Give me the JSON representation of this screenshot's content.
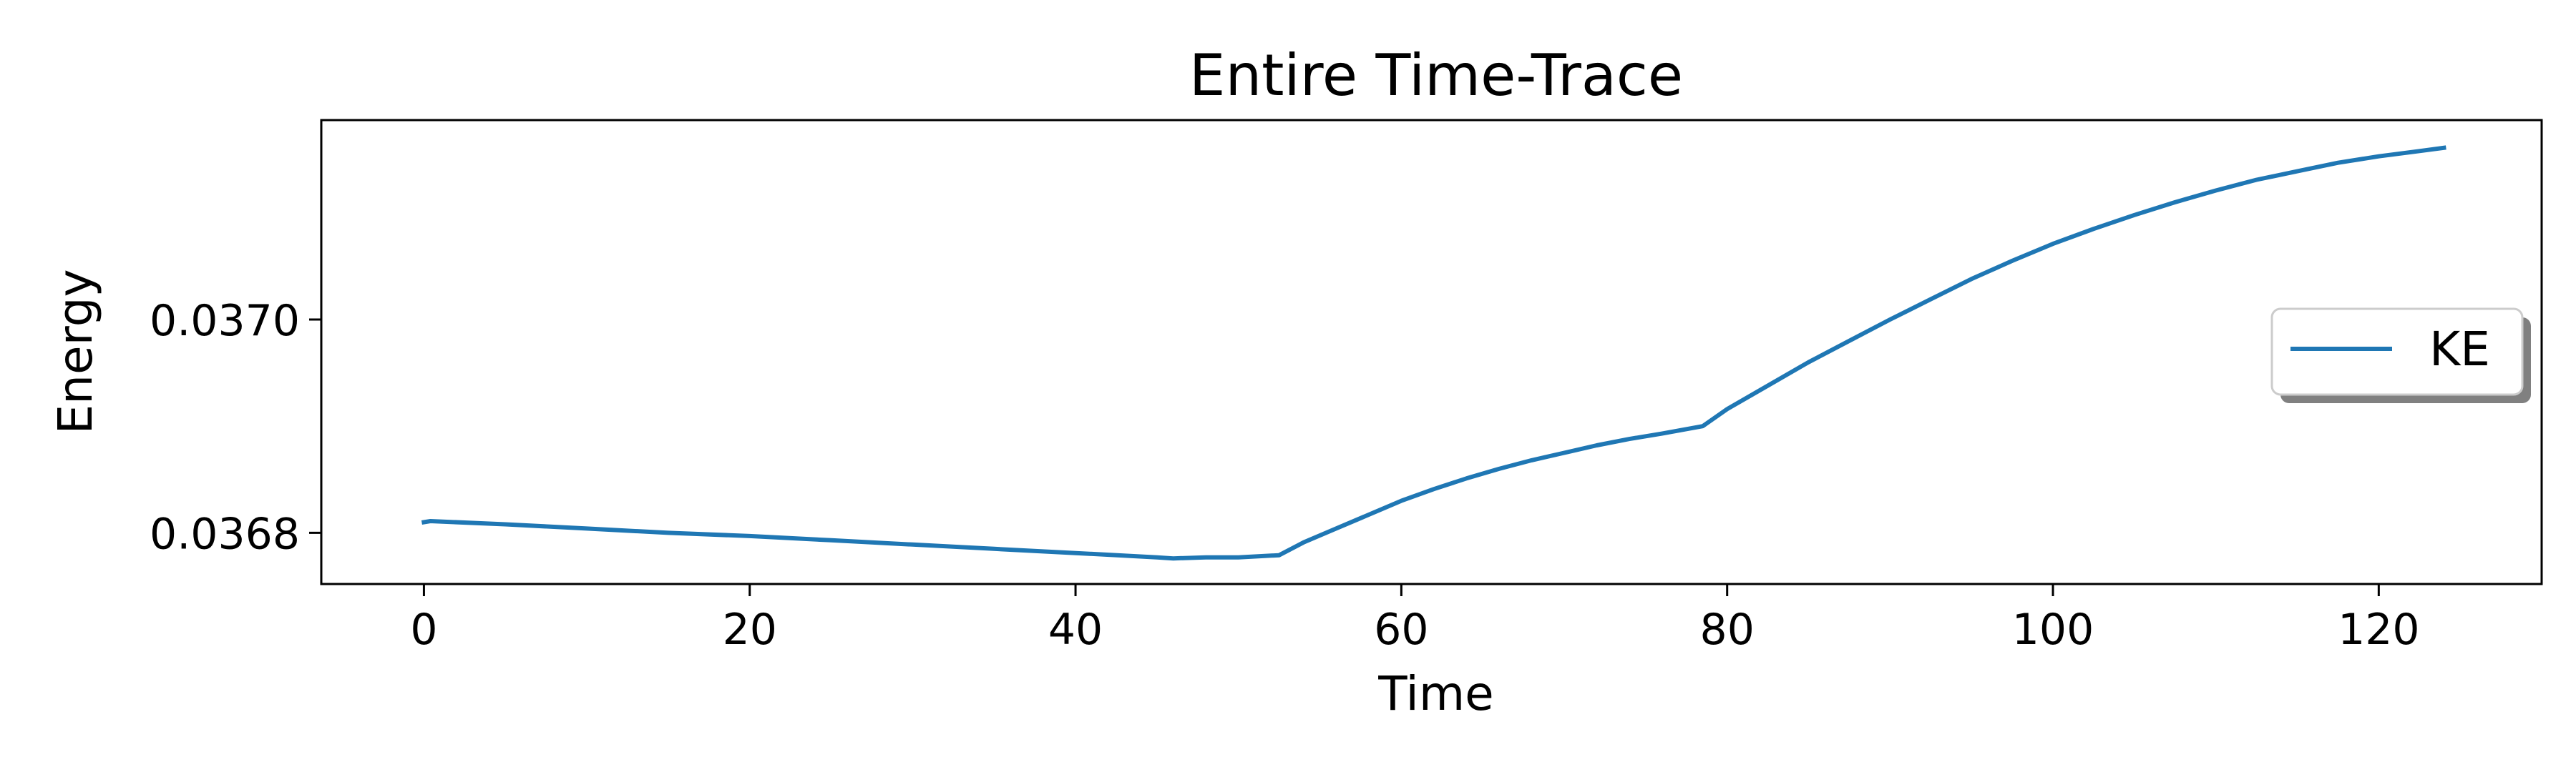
{
  "chart_data": {
    "type": "line",
    "title": "Entire Time-Trace",
    "xlabel": "Time",
    "ylabel": "Energy",
    "xlim": [
      -6.3,
      130.0
    ],
    "ylim": [
      0.036752,
      0.037187
    ],
    "xticks": [
      0,
      20,
      40,
      60,
      80,
      100,
      120
    ],
    "xtick_labels": [
      "0",
      "20",
      "40",
      "60",
      "80",
      "100",
      "120"
    ],
    "yticks": [
      0.0368,
      0.037
    ],
    "ytick_labels": [
      "0.0368",
      "0.0370"
    ],
    "grid": false,
    "legend": {
      "position": "right",
      "entries": [
        "KE"
      ]
    },
    "series": [
      {
        "name": "KE",
        "color": "#1f77b4",
        "x": [
          0,
          0.4,
          5,
          10,
          15,
          20,
          25,
          30,
          35,
          40,
          45,
          46,
          48,
          50,
          52.5,
          54,
          56,
          58,
          60,
          62,
          64,
          66,
          68,
          70,
          72,
          74,
          76,
          78.5,
          80,
          82.5,
          85,
          87.5,
          90,
          92.5,
          95,
          97.5,
          100,
          102.5,
          105,
          107.5,
          110,
          112.5,
          115,
          117.5,
          120,
          122.5,
          124
        ],
        "y": [
          0.03681,
          0.036811,
          0.036808,
          0.036804,
          0.0368,
          0.036797,
          0.036793,
          0.036789,
          0.036785,
          0.036781,
          0.036777,
          0.036776,
          0.036777,
          0.036777,
          0.036779,
          0.036791,
          0.036804,
          0.036817,
          0.03683,
          0.036841,
          0.036851,
          0.03686,
          0.036868,
          0.036875,
          0.036882,
          0.036888,
          0.036893,
          0.0369,
          0.036916,
          0.036938,
          0.03696,
          0.03698,
          0.037,
          0.037019,
          0.037038,
          0.037055,
          0.037071,
          0.037085,
          0.037098,
          0.03711,
          0.037121,
          0.037131,
          0.037139,
          0.037147,
          0.037153,
          0.037158,
          0.037161
        ]
      }
    ]
  }
}
